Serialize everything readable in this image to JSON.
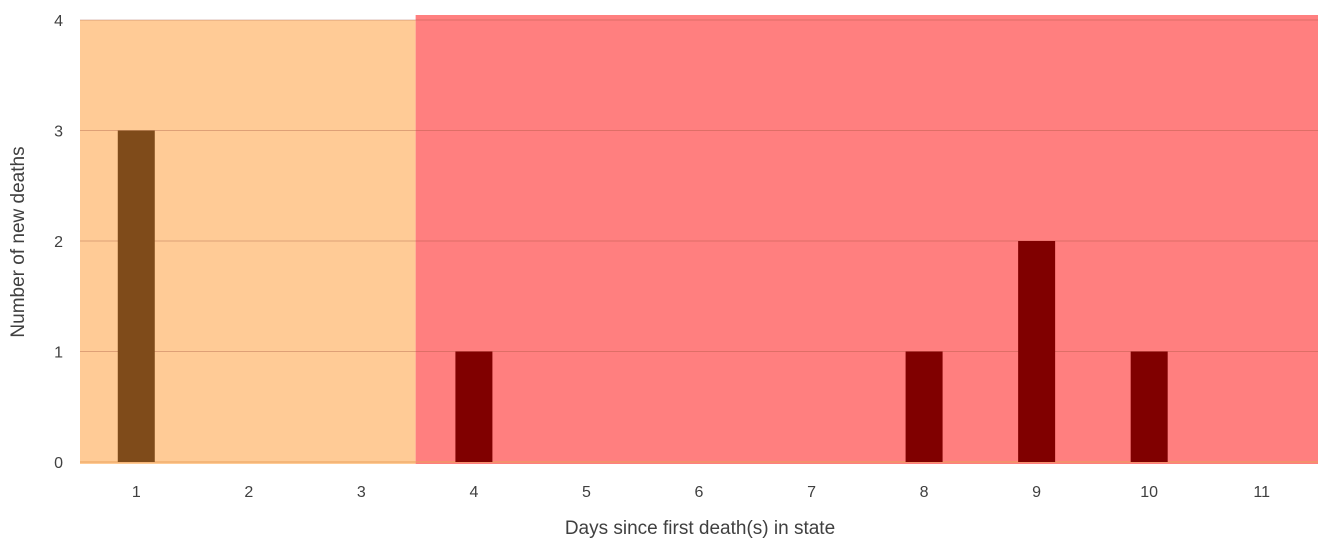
{
  "chart_data": {
    "type": "bar",
    "categories": [
      "1",
      "2",
      "3",
      "4",
      "5",
      "6",
      "7",
      "8",
      "9",
      "10",
      "11"
    ],
    "values": [
      3,
      0,
      0,
      1,
      0,
      0,
      0,
      1,
      2,
      1,
      0
    ],
    "xlabel": "Days since first death(s) in state",
    "ylabel": "Number of new deaths",
    "ylim": [
      0,
      4
    ],
    "yticks": [
      "0",
      "1",
      "2",
      "3",
      "4"
    ],
    "grid": true,
    "bands": [
      {
        "from_day": 1,
        "to_day": 3,
        "color": "#ffcb96"
      },
      {
        "from_day": 4,
        "to_day": 11,
        "color": "#ff7f7f"
      }
    ],
    "bar_colors": {
      "early": "#7f4b1a",
      "late": "#800000"
    }
  }
}
